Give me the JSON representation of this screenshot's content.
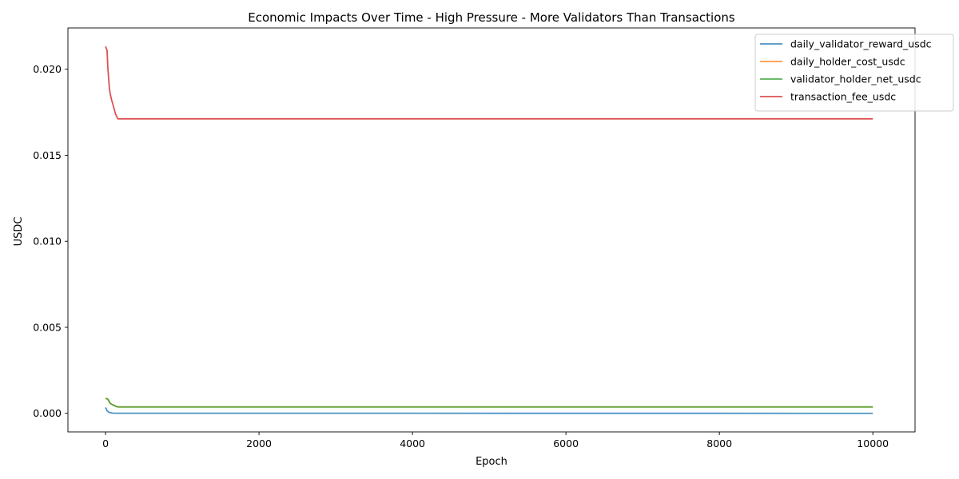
{
  "chart_data": {
    "type": "line",
    "title": "Economic Impacts Over Time - High Pressure - More Validators Than Transactions",
    "xlabel": "Epoch",
    "ylabel": "USDC",
    "xlim": [
      -490,
      10550
    ],
    "ylim": [
      -0.00108,
      0.0224
    ],
    "xticks": [
      0,
      2000,
      4000,
      6000,
      8000,
      10000
    ],
    "xtick_labels": [
      "0",
      "2000",
      "4000",
      "6000",
      "8000",
      "10000"
    ],
    "yticks": [
      0.0,
      0.005,
      0.01,
      0.015,
      0.02
    ],
    "ytick_labels": [
      "0.000",
      "0.005",
      "0.010",
      "0.015",
      "0.020"
    ],
    "grid": false,
    "legend_position": "upper-right",
    "series": [
      {
        "name": "daily_validator_reward_usdc",
        "color": "#1f77b4",
        "x": [
          0,
          20,
          40,
          60,
          80,
          100,
          150,
          10000
        ],
        "y": [
          0.00034,
          0.00015,
          7e-05,
          4e-05,
          2e-05,
          1e-05,
          5e-06,
          0.0
        ]
      },
      {
        "name": "daily_holder_cost_usdc",
        "color": "#ff7f0e",
        "x": [
          0,
          30,
          60,
          100,
          150,
          170,
          10000
        ],
        "y": [
          0.00088,
          0.00083,
          0.00058,
          0.00048,
          0.00038,
          0.00037,
          0.00037
        ]
      },
      {
        "name": "validator_holder_net_usdc",
        "color": "#2ca02c",
        "x": [
          0,
          30,
          60,
          100,
          150,
          170,
          10000
        ],
        "y": [
          0.00085,
          0.00083,
          0.00058,
          0.00048,
          0.00038,
          0.00037,
          0.00037
        ]
      },
      {
        "name": "transaction_fee_usdc",
        "color": "#d62728",
        "x": [
          0,
          20,
          30,
          50,
          60,
          80,
          100,
          130,
          160,
          10000
        ],
        "y": [
          0.02133,
          0.0211,
          0.0201,
          0.0189,
          0.0186,
          0.0182,
          0.0179,
          0.0174,
          0.01712,
          0.01712
        ]
      }
    ]
  }
}
